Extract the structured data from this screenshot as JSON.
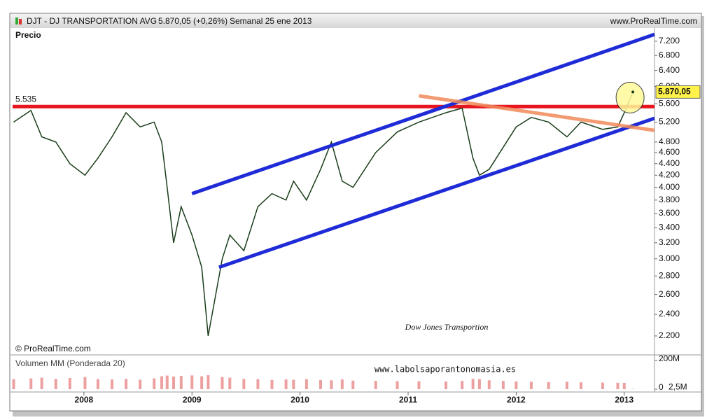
{
  "header": {
    "symbol": "DJT - DJ TRANSPORTATION AVG",
    "quote": "5.870,05 (+0,26%)",
    "period": "Semanal  25 ene 2013",
    "site": "www.ProRealTime.com"
  },
  "chart_data": {
    "type": "line",
    "title": "Dow Jones Transportion",
    "panel_label": "Precio",
    "copyright": "© ProRealTime.com",
    "watermark": "www.labolsaporantonomasia.es",
    "log_scale": true,
    "color": "#1a3d1a",
    "x": [
      2007.35,
      2007.51,
      2007.61,
      2007.74,
      2007.87,
      2008.01,
      2008.13,
      2008.26,
      2008.39,
      2008.52,
      2008.65,
      2008.72,
      2008.77,
      2008.83,
      2008.9,
      2009.0,
      2009.09,
      2009.15,
      2009.28,
      2009.35,
      2009.48,
      2009.61,
      2009.74,
      2009.87,
      2009.94,
      2010.06,
      2010.19,
      2010.29,
      2010.39,
      2010.49,
      2010.7,
      2010.9,
      2011.1,
      2011.35,
      2011.5,
      2011.6,
      2011.66,
      2011.75,
      2011.88,
      2012.0,
      2012.14,
      2012.3,
      2012.47,
      2012.6,
      2012.8,
      2012.94,
      2013.0,
      2013.08
    ],
    "values": [
      5200,
      5450,
      4900,
      4800,
      4400,
      4200,
      4500,
      4900,
      5400,
      5100,
      5200,
      4800,
      4000,
      3200,
      3700,
      3300,
      2900,
      2200,
      3000,
      3300,
      3100,
      3700,
      3900,
      3800,
      4100,
      3800,
      4300,
      4800,
      4100,
      4000,
      4600,
      5000,
      5200,
      5400,
      5500,
      4500,
      4200,
      4300,
      4700,
      5100,
      5300,
      5200,
      4900,
      5200,
      5050,
      5100,
      5400,
      5870.05
    ],
    "last_label": "5.870,05",
    "xlim": [
      2007.34,
      2013.28
    ],
    "xticks": [
      2008,
      2009,
      2010,
      2011,
      2012,
      2013
    ],
    "ylim": [
      2050,
      7550
    ],
    "yticks": [
      {
        "value": 2200,
        "label": "2.200"
      },
      {
        "value": 2400,
        "label": "2.400"
      },
      {
        "value": 2600,
        "label": "2.600"
      },
      {
        "value": 2800,
        "label": "2.800"
      },
      {
        "value": 3000,
        "label": "3.000"
      },
      {
        "value": 3200,
        "label": "3.200"
      },
      {
        "value": 3400,
        "label": "3.400"
      },
      {
        "value": 3600,
        "label": "3.600"
      },
      {
        "value": 3800,
        "label": "3.800"
      },
      {
        "value": 4000,
        "label": "4.000"
      },
      {
        "value": 4200,
        "label": "4.200"
      },
      {
        "value": 4400,
        "label": "4.400"
      },
      {
        "value": 4600,
        "label": "4.600"
      },
      {
        "value": 4800,
        "label": "4.800"
      },
      {
        "value": 5200,
        "label": "5.200"
      },
      {
        "value": 5600,
        "label": "5.600"
      },
      {
        "value": 6000,
        "label": "6.000"
      },
      {
        "value": 6400,
        "label": "6.400"
      },
      {
        "value": 6800,
        "label": "6.800"
      },
      {
        "value": 7200,
        "label": "7.200"
      }
    ],
    "resistance": {
      "value": 5535,
      "label": "5.535",
      "color": "#e8141e"
    },
    "trendlines": [
      {
        "color": "#1e2bd6",
        "x": [
          2009.0,
          2013.28
        ],
        "values": [
          3900,
          7400
        ]
      },
      {
        "color": "#1e2bd6",
        "x": [
          2009.25,
          2013.28
        ],
        "values": [
          2900,
          5280
        ]
      },
      {
        "color": "#f08a5a",
        "x": [
          2011.1,
          2013.28
        ],
        "values": [
          5780,
          5030
        ]
      }
    ],
    "volume": {
      "name": "Volumen MM (Ponderada 20)",
      "color": "#e06060",
      "ylim": [
        0,
        200000000
      ],
      "yticks": [
        {
          "value": 200000000,
          "label": "200M"
        },
        0
      ],
      "values": [
        70000000,
        75000000,
        80000000,
        72000000,
        78000000,
        85000000,
        70000000,
        68000000,
        72000000,
        66000000,
        75000000,
        90000000,
        95000000,
        88000000,
        92000000,
        96000000,
        90000000,
        98000000,
        85000000,
        80000000,
        72000000,
        70000000,
        65000000,
        68000000,
        66000000,
        70000000,
        64000000,
        62000000,
        68000000,
        60000000,
        58000000,
        56000000,
        55000000,
        54000000,
        58000000,
        72000000,
        70000000,
        62000000,
        58000000,
        54000000,
        52000000,
        50000000,
        52000000,
        48000000,
        46000000,
        45000000,
        44000000,
        2500000
      ],
      "value_labels": {
        "47": "2,5M"
      }
    }
  }
}
